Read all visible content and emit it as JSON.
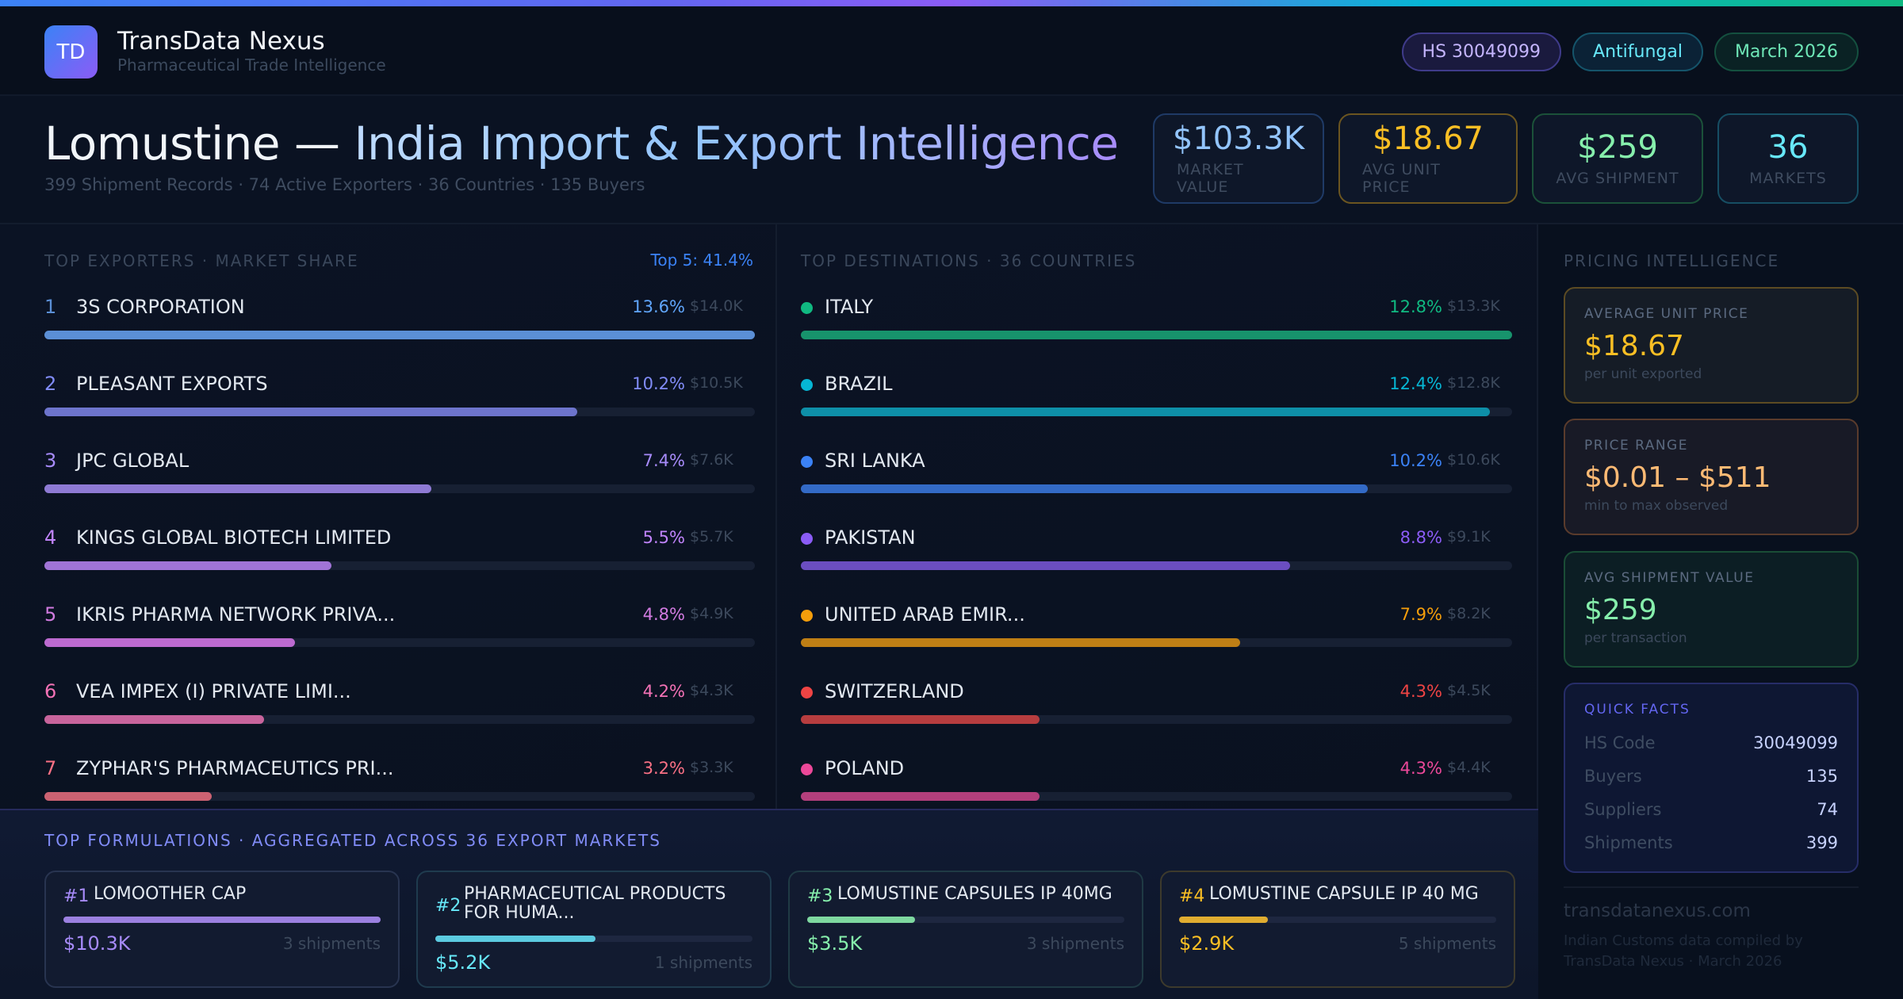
{
  "header": {
    "logo_text": "TD",
    "brand_name": "TransData Nexus",
    "brand_tagline": "Pharmaceutical Trade Intelligence",
    "pills": [
      {
        "label": "HS 30049099"
      },
      {
        "label": "Antifungal"
      },
      {
        "label": "March 2026"
      }
    ]
  },
  "title": {
    "drug": "Lomustine —",
    "rest": "India Import & Export Intelligence",
    "subtitle": "399 Shipment Records · 74 Active Exporters · 36 Countries · 135 Buyers"
  },
  "kpis": [
    {
      "value": "$103.3K",
      "label": "MARKET VALUE"
    },
    {
      "value": "$18.67",
      "label": "AVG UNIT PRICE"
    },
    {
      "value": "$259",
      "label": "AVG SHIPMENT"
    },
    {
      "value": "36",
      "label": "MARKETS"
    }
  ],
  "exporters": {
    "title": "TOP EXPORTERS · MARKET SHARE",
    "top5": "Top 5: 41.4%",
    "items": [
      {
        "rank": "1",
        "name": "3S CORPORATION",
        "pct": "13.6%",
        "value": "$14.0K",
        "share": 13.6,
        "color": "#5b8fd6"
      },
      {
        "rank": "2",
        "name": "PLEASANT EXPORTS",
        "pct": "10.2%",
        "value": "$10.5K",
        "share": 10.2,
        "color": "#6d74cc"
      },
      {
        "rank": "3",
        "name": "JPC GLOBAL",
        "pct": "7.4%",
        "value": "$7.6K",
        "share": 7.4,
        "color": "#8e7ad4"
      },
      {
        "rank": "4",
        "name": "KINGS GLOBAL BIOTECH LIMITED",
        "pct": "5.5%",
        "value": "$5.7K",
        "share": 5.5,
        "color": "#a074d6"
      },
      {
        "rank": "5",
        "name": "IKRIS PHARMA NETWORK PRIVA...",
        "pct": "4.8%",
        "value": "$4.9K",
        "share": 4.8,
        "color": "#bc6ad0"
      },
      {
        "rank": "6",
        "name": "VEA IMPEX (I) PRIVATE  LIMI...",
        "pct": "4.2%",
        "value": "$4.3K",
        "share": 4.2,
        "color": "#c8649c"
      },
      {
        "rank": "7",
        "name": "ZYPHAR'S PHARMACEUTICS PRI...",
        "pct": "3.2%",
        "value": "$3.3K",
        "share": 3.2,
        "color": "#cc6272"
      }
    ],
    "rank_colors": [
      "#5b8fd6",
      "#818cf8",
      "#a78bfa",
      "#c084fc",
      "#d17be0",
      "#f472b6",
      "#fb7185"
    ],
    "pct_colors": [
      "#60a5fa",
      "#818cf8",
      "#a78bfa",
      "#c084fc",
      "#d17be0",
      "#f472b6",
      "#fb7185"
    ]
  },
  "destinations": {
    "title": "TOP DESTINATIONS · 36 COUNTRIES",
    "items": [
      {
        "name": "ITALY",
        "pct": "12.8%",
        "value": "$13.3K",
        "share": 12.8,
        "color": "#10b981",
        "bar": "#17936c"
      },
      {
        "name": "BRAZIL",
        "pct": "12.4%",
        "value": "$12.8K",
        "share": 12.4,
        "color": "#06b6d4",
        "bar": "#0e8fa8"
      },
      {
        "name": "SRI LANKA",
        "pct": "10.2%",
        "value": "$10.6K",
        "share": 10.2,
        "color": "#3b82f6",
        "bar": "#336ac6"
      },
      {
        "name": "PAKISTAN",
        "pct": "8.8%",
        "value": "$9.1K",
        "share": 8.8,
        "color": "#8b5cf6",
        "bar": "#6b4ec0"
      },
      {
        "name": "UNITED ARAB EMIR...",
        "pct": "7.9%",
        "value": "$8.2K",
        "share": 7.9,
        "color": "#f59e0b",
        "bar": "#bf7f15"
      },
      {
        "name": "SWITZERLAND",
        "pct": "4.3%",
        "value": "$4.5K",
        "share": 4.3,
        "color": "#ef4444",
        "bar": "#b73d3f"
      },
      {
        "name": "POLAND",
        "pct": "4.3%",
        "value": "$4.4K",
        "share": 4.3,
        "color": "#ec4899",
        "bar": "#b33f7c"
      }
    ]
  },
  "formulations": {
    "title": "TOP FORMULATIONS · AGGREGATED ACROSS 36 EXPORT MARKETS",
    "items": [
      {
        "num": "#1",
        "name": "LOMOOTHER CAP",
        "value": "$10.3K",
        "shipments": "3 shipments",
        "share": 100,
        "color": "#a78bfa",
        "bar": "#9b80e0",
        "border": "#283450"
      },
      {
        "num": "#2",
        "name": "PHARMACEUTICAL PRODUCTS FOR HUMA...",
        "value": "$5.2K",
        "shipments": "1 shipments",
        "share": 50.5,
        "color": "#67e8f9",
        "bar": "#5ccbe0",
        "border": "#1f3b4e"
      },
      {
        "num": "#3",
        "name": "LOMUSTINE CAPSULES IP 40MG",
        "value": "$3.5K",
        "shipments": "3 shipments",
        "share": 34,
        "color": "#86efac",
        "bar": "#7ed8a0",
        "border": "#1f3a44"
      },
      {
        "num": "#4",
        "name": "LOMUSTINE CAPSULE IP 40 MG",
        "value": "$2.9K",
        "shipments": "5 shipments",
        "share": 28,
        "color": "#fbbf24",
        "bar": "#e0ad30",
        "border": "#3d3a2c"
      }
    ]
  },
  "pricing": {
    "title": "PRICING INTELLIGENCE",
    "cards": [
      {
        "label": "AVERAGE UNIT PRICE",
        "value": "$18.67",
        "sub": "per unit exported"
      },
      {
        "label": "PRICE RANGE",
        "value": "$0.01 – $511",
        "sub": "min to max observed"
      },
      {
        "label": "AVG SHIPMENT VALUE",
        "value": "$259",
        "sub": "per transaction"
      }
    ],
    "quick_facts": {
      "title": "QUICK FACTS",
      "rows": [
        {
          "key": "HS Code",
          "value": "30049099"
        },
        {
          "key": "Buyers",
          "value": "135"
        },
        {
          "key": "Suppliers",
          "value": "74"
        },
        {
          "key": "Shipments",
          "value": "399"
        }
      ]
    },
    "site": "transdatanexus.com",
    "footer": "Indian Customs data compiled by TransData Nexus · March 2026"
  }
}
